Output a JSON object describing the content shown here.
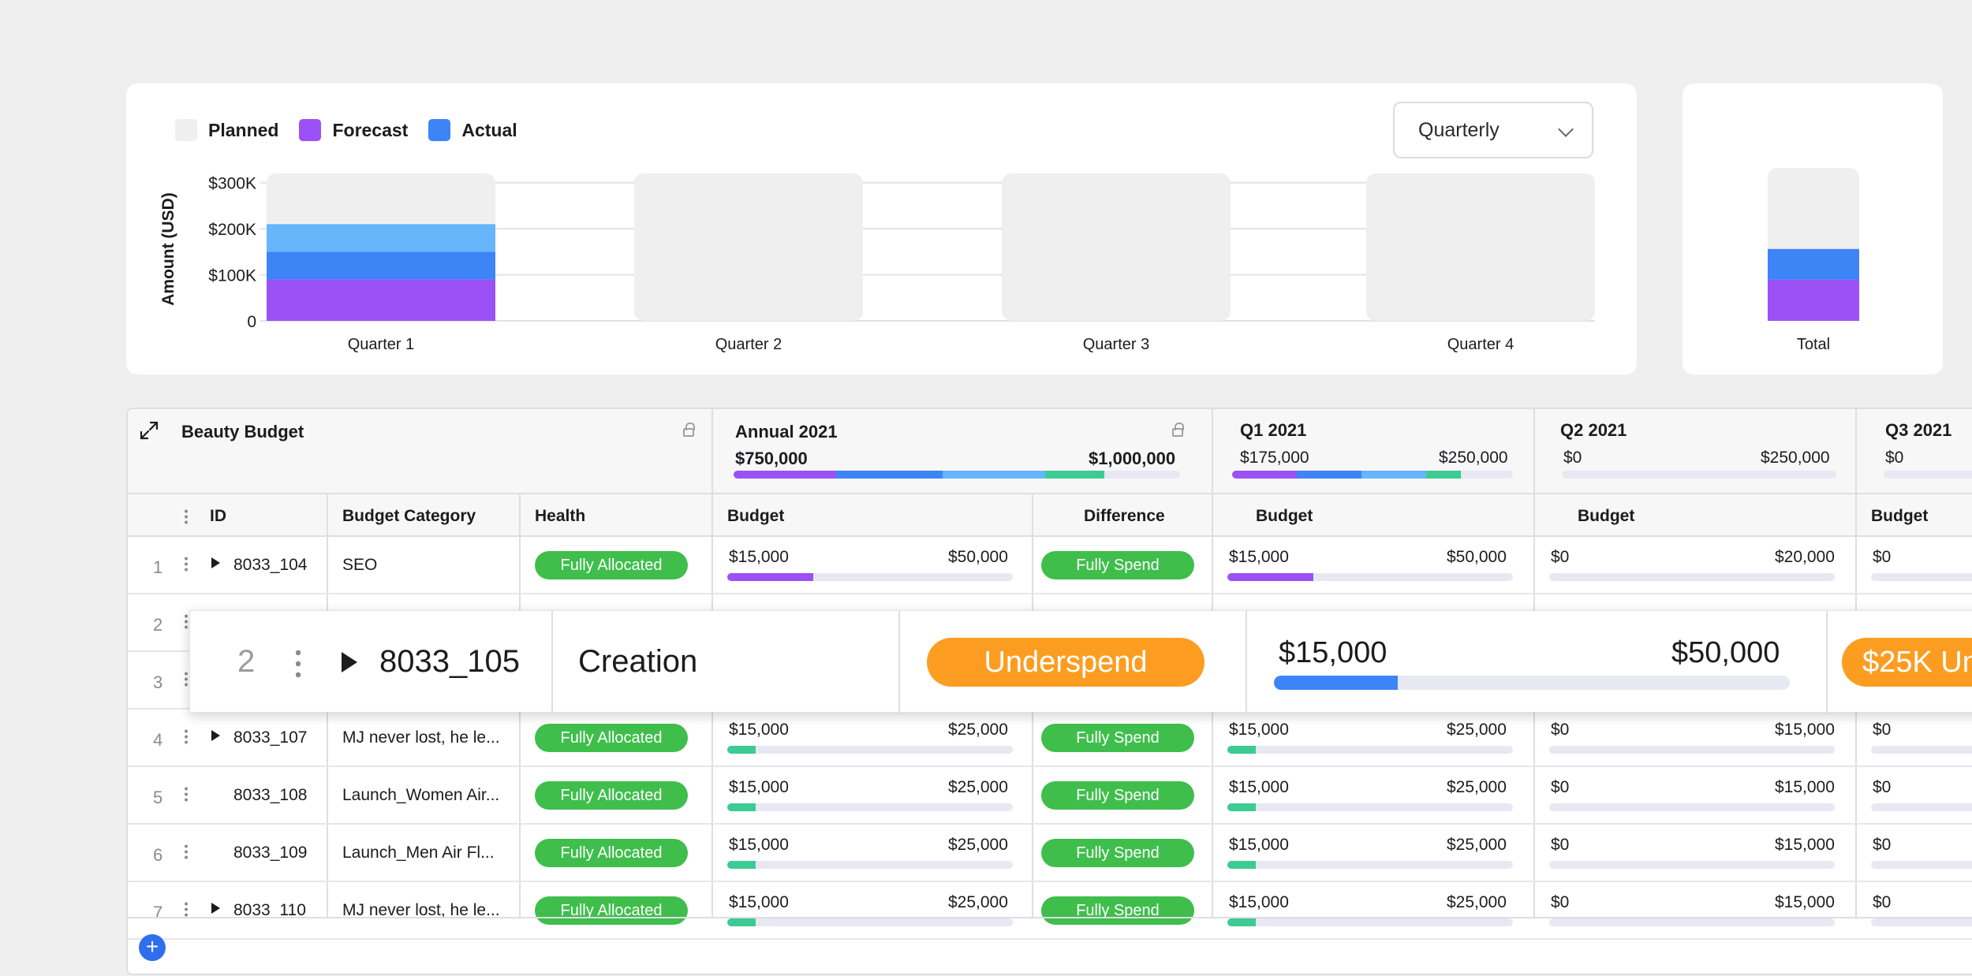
{
  "legend": [
    {
      "label": "Planned",
      "color": "#efefef"
    },
    {
      "label": "Forecast",
      "color": "#9b51f5"
    },
    {
      "label": "Actual",
      "color": "#3d84f6"
    }
  ],
  "period_select": {
    "value": "Quarterly"
  },
  "chart_data": {
    "type": "bar",
    "ylabel": "Amount (USD)",
    "yticks": [
      "$300K",
      "$200K",
      "$100K",
      "0"
    ],
    "ylim": [
      0,
      320000
    ],
    "categories": [
      "Quarter 1",
      "Quarter 2",
      "Quarter 3",
      "Quarter 4"
    ],
    "planned": [
      320000,
      320000,
      320000,
      320000
    ],
    "stacks": [
      [
        {
          "value": 90000,
          "color": "#9b51f5"
        },
        {
          "value": 60000,
          "color": "#3d84f6"
        },
        {
          "value": 60000,
          "color": "#66b6fb"
        }
      ],
      [],
      [],
      []
    ],
    "grid": true
  },
  "total_chart": {
    "label": "Total",
    "planned": 100,
    "stack": [
      {
        "value": 27,
        "color": "#9b51f5"
      },
      {
        "value": 20,
        "color": "#3d84f6"
      }
    ]
  },
  "table": {
    "title": "Beauty Budget",
    "groups": [
      {
        "label": "Annual 2021",
        "min": "$750,000",
        "max": "$1,000,000"
      },
      {
        "label": "Q1 2021",
        "min": "$175,000",
        "max": "$250,000"
      },
      {
        "label": "Q2 2021",
        "min": "$0",
        "max": "$250,000"
      },
      {
        "label": "Q3 2021",
        "min": "$0"
      }
    ],
    "columns": {
      "id": "ID",
      "category": "Budget Category",
      "health": "Health",
      "budget": "Budget",
      "difference": "Difference"
    },
    "rows": [
      {
        "num": "1",
        "id": "8033_104",
        "category": "SEO",
        "health": "Fully Allocated",
        "a_min": "$15,000",
        "a_max": "$50,000",
        "diff": "Fully Spend",
        "q1_min": "$15,000",
        "q1_max": "$50,000",
        "q2_min": "$0",
        "q2_max": "$20,000",
        "q3_min": "$0",
        "fill": 0.3,
        "color": "#9b51f5"
      },
      {
        "num": "2"
      },
      {
        "num": "3"
      },
      {
        "num": "4",
        "id": "8033_107",
        "category": "MJ never lost, he le...",
        "health": "Fully Allocated",
        "a_min": "$15,000",
        "a_max": "$25,000",
        "diff": "Fully Spend",
        "q1_min": "$15,000",
        "q1_max": "$25,000",
        "q2_min": "$0",
        "q2_max": "$15,000",
        "q3_min": "$0",
        "fill": 0.1,
        "color": "#3ccb93"
      },
      {
        "num": "5",
        "id": "8033_108",
        "category": "Launch_Women Air...",
        "health": "Fully Allocated",
        "a_min": "$15,000",
        "a_max": "$25,000",
        "diff": "Fully Spend",
        "q1_min": "$15,000",
        "q1_max": "$25,000",
        "q2_min": "$0",
        "q2_max": "$15,000",
        "q3_min": "$0",
        "fill": 0.1,
        "color": "#3ccb93"
      },
      {
        "num": "6",
        "id": "8033_109",
        "category": "Launch_Men Air Fl...",
        "health": "Fully Allocated",
        "a_min": "$15,000",
        "a_max": "$25,000",
        "diff": "Fully Spend",
        "q1_min": "$15,000",
        "q1_max": "$25,000",
        "q2_min": "$0",
        "q2_max": "$15,000",
        "q3_min": "$0",
        "fill": 0.1,
        "color": "#3ccb93"
      },
      {
        "num": "7",
        "id": "8033_110",
        "category": "MJ never lost, he le...",
        "health": "Fully Allocated",
        "a_min": "$15,000",
        "a_max": "$25,000",
        "diff": "Fully Spend",
        "q1_min": "$15,000",
        "q1_max": "$25,000",
        "q2_min": "$0",
        "q2_max": "$15,000",
        "q3_min": "$0",
        "fill": 0.1,
        "color": "#3ccb93"
      }
    ],
    "dragged": {
      "num": "2",
      "id": "8033_105",
      "category": "Creation",
      "health": "Underspend",
      "min": "$15,000",
      "max": "$50,000",
      "diff": "$25K Un",
      "fill": 0.24
    }
  }
}
